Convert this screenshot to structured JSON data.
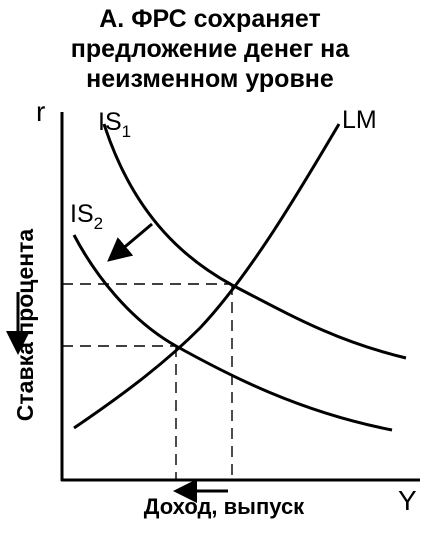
{
  "title": {
    "line1": "А. ФРС сохраняет",
    "line2": "предложение денег на",
    "line3": "неизменном уровне"
  },
  "axes": {
    "y_symbol": "r",
    "x_symbol": "Y",
    "y_label": "Ставка процента",
    "x_label": "Доход, выпуск"
  },
  "curves": {
    "is1_label": "IS",
    "is1_sub": "1",
    "is2_label": "IS",
    "is2_sub": "2",
    "lm_label": "LM"
  },
  "colors": {
    "ink": "#000000",
    "background": "#ffffff"
  }
}
